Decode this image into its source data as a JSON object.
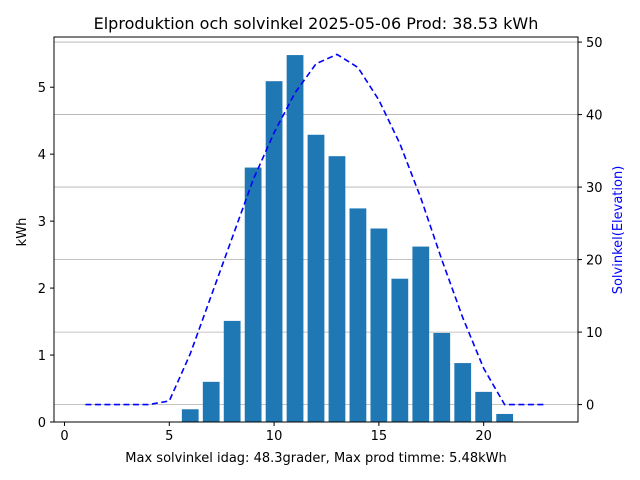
{
  "chart_data": {
    "type": "bar",
    "title": "Elproduktion och solvinkel 2025-05-06 Prod: 38.53 kWh",
    "xlabel": "Max solvinkel idag: 48.3grader, Max prod timme: 5.48kWh",
    "ylabel": "kWh",
    "y2label": "Solvinkel(Elevation)",
    "xlim": [
      -0.5,
      24.5
    ],
    "ylim": [
      0,
      5.75
    ],
    "y2lim": [
      -2.4,
      50.7
    ],
    "xticks": [
      0,
      5,
      10,
      15,
      20
    ],
    "yticks": [
      0,
      1,
      2,
      3,
      4,
      5
    ],
    "y2ticks": [
      0,
      10,
      20,
      30,
      40,
      50
    ],
    "grid": "right-axis horizontal",
    "colors": {
      "bar": "#1f77b4",
      "line": "#0000ff",
      "grid": "#b0b0b0",
      "y2label": "#0000ff"
    },
    "series": [
      {
        "type": "bar",
        "x": [
          6,
          7,
          8,
          9,
          10,
          11,
          12,
          13,
          14,
          15,
          16,
          17,
          18,
          19,
          20,
          21
        ],
        "values": [
          0.19,
          0.6,
          1.51,
          3.8,
          5.09,
          5.48,
          4.29,
          3.97,
          3.19,
          2.89,
          2.14,
          2.62,
          1.33,
          0.88,
          0.45,
          0.12
        ]
      },
      {
        "type": "line",
        "axis": "right",
        "style": "dashed",
        "x": [
          1,
          2,
          3,
          4,
          5,
          6,
          7,
          8,
          9,
          10,
          11,
          12,
          13,
          14,
          15,
          16,
          17,
          18,
          19,
          20,
          21,
          22,
          23
        ],
        "values": [
          0,
          0,
          0,
          0,
          0.5,
          7,
          15,
          23,
          31,
          37.5,
          43,
          47,
          48.3,
          46.5,
          42,
          36,
          28.5,
          20,
          12,
          5,
          0,
          0,
          0
        ]
      }
    ]
  }
}
